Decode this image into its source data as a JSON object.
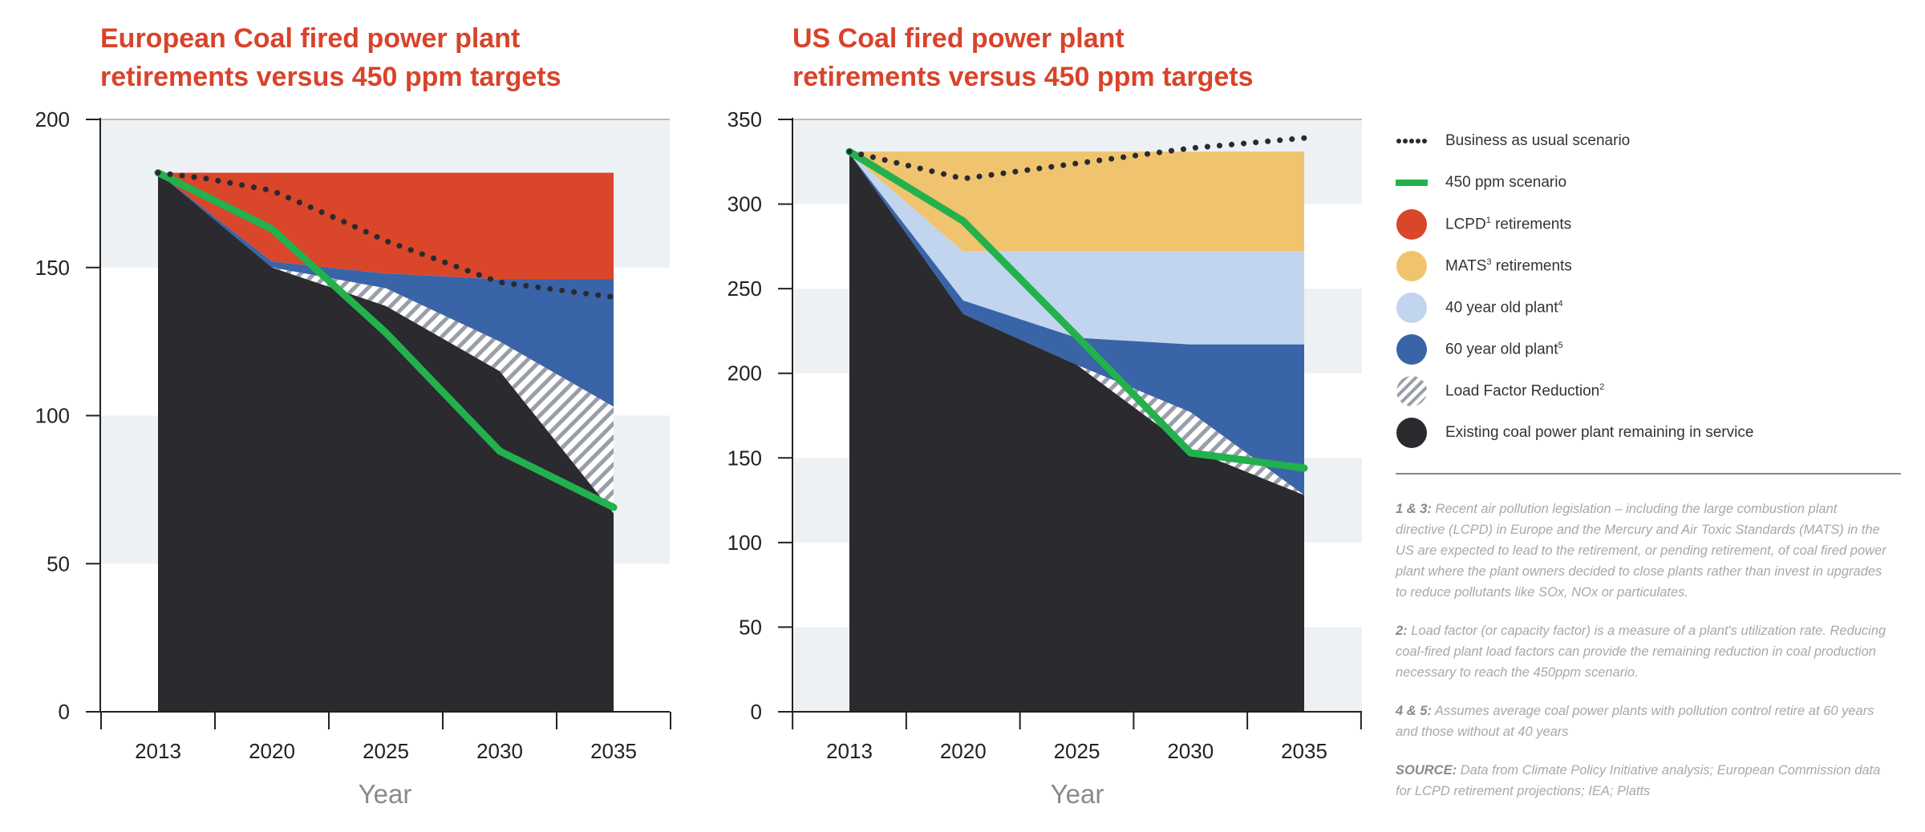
{
  "chart_data": [
    {
      "type": "area",
      "title_line1": "European Coal fired power plant",
      "title_line2": "retirements versus 450 ppm targets",
      "xlabel": "Year",
      "ylabel": "",
      "x": [
        2013,
        2020,
        2025,
        2030,
        2035
      ],
      "x_tick_labels": [
        "2013",
        "2020",
        "2025",
        "2030",
        "2035"
      ],
      "ylim": [
        0,
        200
      ],
      "y_ticks": [
        0,
        50,
        100,
        150,
        200
      ],
      "existing": {
        "x": [
          2013,
          2020,
          2025,
          2030,
          2035
        ],
        "y": [
          182,
          150,
          137,
          115,
          67
        ]
      },
      "load_factor": {
        "x": [
          2013,
          2020,
          2025,
          2030,
          2035
        ],
        "y": [
          182,
          150,
          143,
          125,
          103
        ]
      },
      "plant_60": {
        "x": [
          2013,
          2020,
          2025,
          2030,
          2035
        ],
        "y": [
          182,
          152,
          148,
          146,
          146
        ]
      },
      "lcpd": {
        "x": [
          2013,
          2020,
          2025,
          2030,
          2035
        ],
        "y": [
          182,
          182,
          182,
          182,
          182
        ]
      },
      "bau": {
        "x": [
          2013,
          2016,
          2020,
          2023,
          2025,
          2030,
          2035
        ],
        "y": [
          182,
          180,
          176,
          166,
          159,
          145,
          140
        ]
      },
      "ppm450": {
        "x": [
          2013,
          2020,
          2025,
          2030,
          2035
        ],
        "y": [
          182,
          163,
          128,
          88,
          69
        ]
      }
    },
    {
      "type": "area",
      "title_line1": "US Coal fired power plant",
      "title_line2": "retirements versus 450 ppm targets",
      "xlabel": "Year",
      "ylabel": "",
      "x": [
        2013,
        2020,
        2025,
        2030,
        2035
      ],
      "x_tick_labels": [
        "2013",
        "2020",
        "2025",
        "2030",
        "2035"
      ],
      "ylim": [
        0,
        350
      ],
      "y_ticks": [
        0,
        50,
        100,
        150,
        200,
        250,
        300,
        350
      ],
      "existing": {
        "x": [
          2013,
          2020,
          2025,
          2030,
          2035
        ],
        "y": [
          330,
          235,
          205,
          155,
          128
        ]
      },
      "load_factor": {
        "x": [
          2013,
          2020,
          2025,
          2030,
          2035
        ],
        "y": [
          330,
          235,
          205,
          177,
          128
        ]
      },
      "plant_60": {
        "x": [
          2013,
          2020,
          2025,
          2030,
          2035
        ],
        "y": [
          330,
          243,
          221,
          217,
          217
        ]
      },
      "plant_40": {
        "x": [
          2013,
          2020,
          2025,
          2030,
          2035
        ],
        "y": [
          330,
          272,
          272,
          272,
          272
        ]
      },
      "mats": {
        "x": [
          2013,
          2020,
          2025,
          2030,
          2035
        ],
        "y": [
          331,
          331,
          331,
          331,
          331
        ]
      },
      "bau": {
        "x": [
          2013,
          2020,
          2025,
          2030,
          2035
        ],
        "y": [
          331,
          315,
          324,
          333,
          339
        ]
      },
      "ppm450": {
        "x": [
          2013,
          2020,
          2025,
          2030,
          2035
        ],
        "y": [
          331,
          290,
          222,
          153,
          144
        ]
      }
    }
  ],
  "colors": {
    "existing": "#2a2a2f",
    "plant_60": "#3a64a8",
    "plant_40": "#c1d5ef",
    "lcpd": "#d9462a",
    "mats": "#f0c46f",
    "ppm450": "#22b14c",
    "bau": "#2a2a2f",
    "band": "#eef1f4",
    "hatch": "#9a9ea8"
  },
  "legend": [
    {
      "key": "bau",
      "label": "Business as usual scenario",
      "sup": "",
      "swatch": "dots"
    },
    {
      "key": "ppm450",
      "label": "450 ppm scenario",
      "sup": "",
      "swatch": "line"
    },
    {
      "key": "lcpd",
      "label": "LCPD",
      "sup": "1",
      "suffix": " retirements",
      "swatch": "circle"
    },
    {
      "key": "mats",
      "label": "MATS",
      "sup": "3",
      "suffix": " retirements",
      "swatch": "circle"
    },
    {
      "key": "plant_40",
      "label": "40 year old plant",
      "sup": "4",
      "suffix": "",
      "swatch": "circle"
    },
    {
      "key": "plant_60",
      "label": "60 year old plant",
      "sup": "5",
      "suffix": "",
      "swatch": "circle"
    },
    {
      "key": "load_factor",
      "label": "Load Factor Reduction",
      "sup": "2",
      "suffix": "",
      "swatch": "hatch"
    },
    {
      "key": "existing",
      "label": "Existing coal power plant remaining in service",
      "sup": "",
      "suffix": "",
      "swatch": "circle"
    }
  ],
  "notes": [
    {
      "key": "1 & 3:",
      "text": " Recent air pollution legislation – including the large combustion plant directive (LCPD) in Europe and the Mercury and Air Toxic Standards (MATS) in the US are expected to lead to the retirement, or pending retirement, of coal fired power plant where the plant owners decided to close plants rather than invest in upgrades to reduce pollutants like SOx, NOx or particulates."
    },
    {
      "key": "2:",
      "text": " Load factor (or capacity factor) is a measure of a plant's utilization rate. Reducing coal-fired plant load factors can provide the remaining reduction in coal production necessary to reach the 450ppm scenario."
    },
    {
      "key": "4 & 5:",
      "text": " Assumes average coal power plants with pollution control retire at 60 years and those without at 40 years"
    },
    {
      "key": "SOURCE:",
      "text": " Data from Climate Policy Initiative analysis; European Commission data for LCPD retirement projections; IEA; Platts"
    }
  ]
}
